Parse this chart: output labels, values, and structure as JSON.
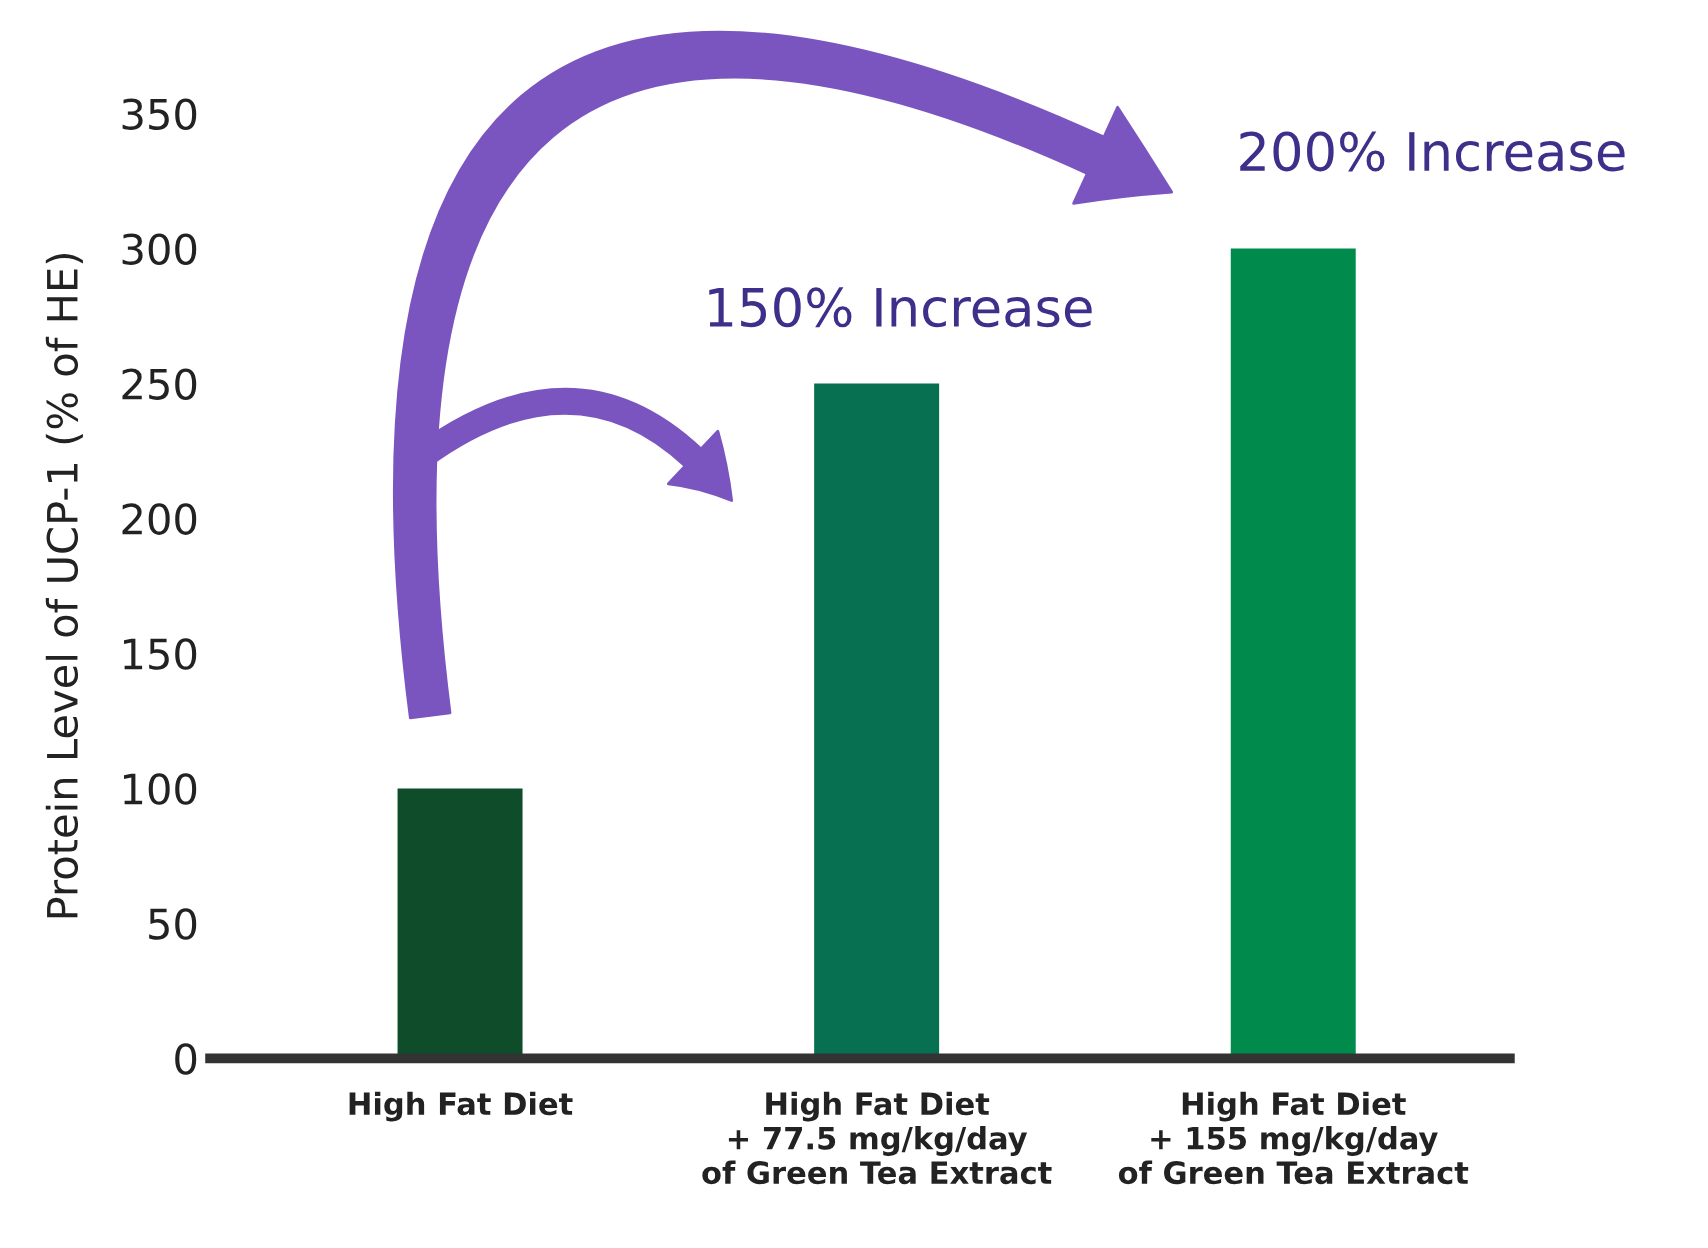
{
  "chart_data": {
    "type": "bar",
    "ylabel": "Protein Level of UCP-1 (% of HE)",
    "categories": [
      "High Fat Diet",
      "High Fat Diet\n+ 77.5 mg/kg/day\nof Green Tea Extract",
      "High Fat Diet\n+ 155 mg/kg/day\nof Green Tea Extract"
    ],
    "values": [
      100,
      250,
      300
    ],
    "colors": [
      "#0f4d2a",
      "#067050",
      "#008a4c"
    ],
    "ylim": [
      0,
      350
    ],
    "yticks": [
      0,
      50,
      100,
      150,
      200,
      250,
      300,
      350
    ],
    "annotations": [
      "150% Increase",
      "200% Increase"
    ],
    "grid": false,
    "legend": false
  }
}
